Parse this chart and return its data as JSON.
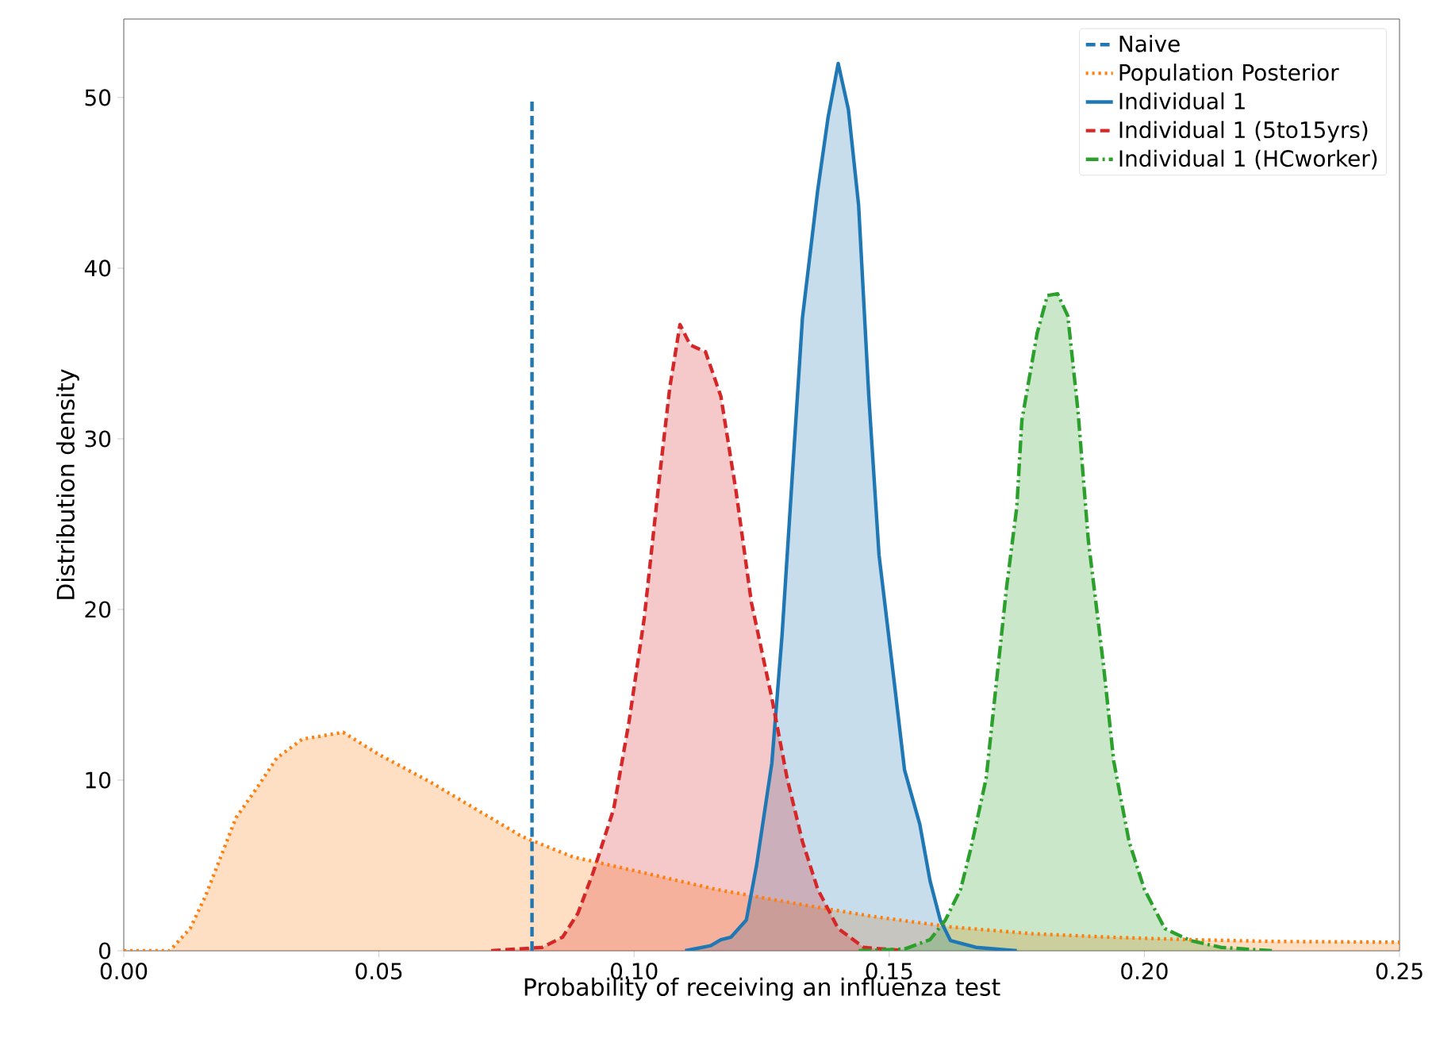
{
  "chart_data": {
    "type": "area",
    "xlabel": "Probability of receiving an influenza test",
    "ylabel": "Distribution density",
    "xlim": [
      0,
      0.25
    ],
    "ylim": [
      0,
      54.6
    ],
    "xticks": [
      {
        "value": 0,
        "label": "0.00"
      },
      {
        "value": 0.05,
        "label": "0.05"
      },
      {
        "value": 0.1,
        "label": "0.10"
      },
      {
        "value": 0.15,
        "label": "0.15"
      },
      {
        "value": 0.2,
        "label": "0.20"
      },
      {
        "value": 0.25,
        "label": "0.25"
      }
    ],
    "yticks": [
      0,
      10,
      20,
      30,
      40,
      50
    ],
    "legend": "top right",
    "grid": false,
    "series": [
      {
        "name": "Naive",
        "type": "line",
        "line_style": "dashed",
        "color": "#1f77b4",
        "x": [
          0.08,
          0.08
        ],
        "values": [
          0,
          50
        ]
      },
      {
        "name": "Population Posterior",
        "line_style": "dotted",
        "color": "#ff7f0e",
        "x": [
          0,
          0.009,
          0.013,
          0.016,
          0.019,
          0.022,
          0.026,
          0.03,
          0.035,
          0.043,
          0.05,
          0.06,
          0.069,
          0.078,
          0.088,
          0.1,
          0.116,
          0.131,
          0.147,
          0.162,
          0.178,
          0.193,
          0.209,
          0.225,
          0.25
        ],
        "values": [
          0,
          0,
          1.3,
          3.2,
          5.5,
          7.8,
          9.5,
          11.3,
          12.4,
          12.8,
          11.5,
          9.9,
          8.3,
          6.7,
          5.5,
          4.7,
          3.6,
          2.8,
          2.0,
          1.4,
          1.0,
          0.8,
          0.65,
          0.55,
          0.5
        ]
      },
      {
        "name": "Individual 1",
        "line_style": "solid",
        "color": "#1f77b4",
        "x": [
          0.11,
          0.115,
          0.117,
          0.119,
          0.122,
          0.124,
          0.127,
          0.129,
          0.131,
          0.133,
          0.136,
          0.138,
          0.14,
          0.142,
          0.144,
          0.146,
          0.148,
          0.151,
          0.153,
          0.156,
          0.158,
          0.16,
          0.162,
          0.167,
          0.175
        ],
        "values": [
          0,
          0.3,
          0.65,
          0.8,
          1.8,
          5,
          11,
          18.5,
          27.8,
          37.1,
          44.6,
          48.8,
          52,
          49.3,
          43.7,
          32.5,
          23.2,
          15.7,
          10.6,
          7.4,
          4.1,
          1.8,
          0.6,
          0.2,
          0
        ]
      },
      {
        "name": "Individual 1 (5to15yrs)",
        "line_style": "dashed",
        "color": "#d62728",
        "x": [
          0.072,
          0.082,
          0.086,
          0.089,
          0.092,
          0.096,
          0.099,
          0.102,
          0.105,
          0.107,
          0.109,
          0.111,
          0.114,
          0.117,
          0.12,
          0.123,
          0.127,
          0.13,
          0.133,
          0.136,
          0.14,
          0.145,
          0.153
        ],
        "values": [
          0,
          0.2,
          0.8,
          2.2,
          4.6,
          8.3,
          13.4,
          19.5,
          27.8,
          33,
          36.7,
          35.5,
          35.1,
          32.5,
          26.9,
          20.4,
          14.8,
          10.1,
          6.4,
          3.6,
          1.3,
          0.2,
          0
        ]
      },
      {
        "name": "Individual 1 (HCworker)",
        "line_style": "dashdot",
        "color": "#2ca02c",
        "x": [
          0.144,
          0.153,
          0.158,
          0.161,
          0.164,
          0.166,
          0.169,
          0.171,
          0.173,
          0.175,
          0.176,
          0.179,
          0.181,
          0.183,
          0.185,
          0.187,
          0.189,
          0.192,
          0.194,
          0.197,
          0.2,
          0.204,
          0.209,
          0.215,
          0.225
        ],
        "values": [
          0,
          0.1,
          0.65,
          1.8,
          3.6,
          6,
          10.1,
          15.7,
          21.3,
          26,
          31.1,
          36.2,
          38.4,
          38.5,
          37.2,
          31.6,
          24.1,
          16.7,
          11.1,
          6.4,
          3.6,
          1.3,
          0.6,
          0.2,
          0
        ]
      }
    ]
  }
}
